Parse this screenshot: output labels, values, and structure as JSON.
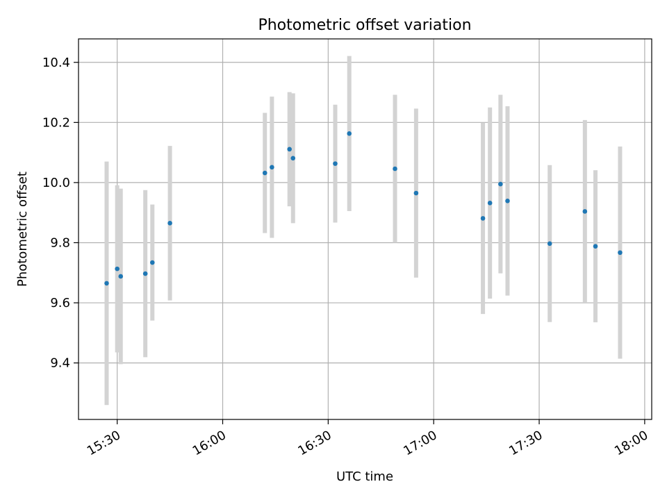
{
  "chart_data": {
    "type": "scatter",
    "title": "Photometric offset variation",
    "xlabel": "UTC time",
    "ylabel": "Photometric offset",
    "x_is_time": true,
    "xlim": [
      "15:19",
      "18:02"
    ],
    "ylim": [
      9.212,
      10.478
    ],
    "x_ticks": [
      "15:30",
      "16:00",
      "16:30",
      "17:00",
      "17:30",
      "18:00"
    ],
    "y_ticks": [
      9.4,
      9.6,
      9.8,
      10.0,
      10.2,
      10.4
    ],
    "grid": true,
    "marker_color": "#1f77b4",
    "errorbar_color": "#d3d3d3",
    "points": [
      {
        "time": "15:27",
        "y": 9.665,
        "err": 0.405
      },
      {
        "time": "15:30",
        "y": 9.713,
        "err": 0.278
      },
      {
        "time": "15:31",
        "y": 9.688,
        "err": 0.292
      },
      {
        "time": "15:38",
        "y": 9.697,
        "err": 0.278
      },
      {
        "time": "15:40",
        "y": 9.734,
        "err": 0.193
      },
      {
        "time": "15:45",
        "y": 9.865,
        "err": 0.257
      },
      {
        "time": "16:12",
        "y": 10.032,
        "err": 0.2
      },
      {
        "time": "16:14",
        "y": 10.051,
        "err": 0.235
      },
      {
        "time": "16:19",
        "y": 10.111,
        "err": 0.19
      },
      {
        "time": "16:20",
        "y": 10.081,
        "err": 0.216
      },
      {
        "time": "16:32",
        "y": 10.063,
        "err": 0.196
      },
      {
        "time": "16:36",
        "y": 10.163,
        "err": 0.258
      },
      {
        "time": "16:49",
        "y": 10.046,
        "err": 0.246
      },
      {
        "time": "16:55",
        "y": 9.965,
        "err": 0.281
      },
      {
        "time": "17:14",
        "y": 9.881,
        "err": 0.318
      },
      {
        "time": "17:16",
        "y": 9.932,
        "err": 0.318
      },
      {
        "time": "17:19",
        "y": 9.995,
        "err": 0.297
      },
      {
        "time": "17:21",
        "y": 9.939,
        "err": 0.315
      },
      {
        "time": "17:33",
        "y": 9.797,
        "err": 0.261
      },
      {
        "time": "17:43",
        "y": 9.904,
        "err": 0.304
      },
      {
        "time": "17:46",
        "y": 9.788,
        "err": 0.253
      },
      {
        "time": "17:53",
        "y": 9.767,
        "err": 0.353
      }
    ]
  }
}
